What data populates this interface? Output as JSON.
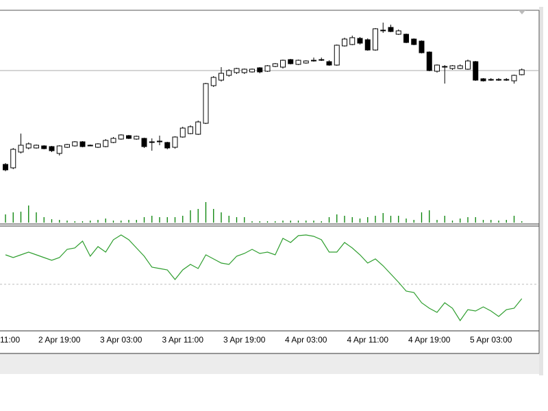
{
  "chart_data": [
    {
      "type": "candlestick",
      "categories": [
        null,
        null,
        null,
        null,
        null,
        null,
        null,
        "2 Apr 19:00",
        null,
        null,
        null,
        null,
        null,
        null,
        null,
        "3 Apr 03:00",
        null,
        null,
        null,
        null,
        null,
        null,
        null,
        "3 Apr 11:00",
        null,
        null,
        null,
        null,
        null,
        null,
        null,
        "3 Apr 19:00",
        null,
        null,
        null,
        null,
        null,
        null,
        null,
        "4 Apr 03:00",
        null,
        null,
        null,
        null,
        null,
        null,
        null,
        "4 Apr 11:00",
        null,
        null,
        null,
        null,
        null,
        null,
        null,
        "4 Apr 19:00",
        null,
        null,
        null,
        null,
        null,
        null,
        null,
        "5 Apr 03:00",
        null,
        null,
        null,
        null
      ],
      "clipped_x_label": "11:00",
      "open": [
        88,
        83,
        106,
        112,
        112,
        115,
        114,
        104,
        113,
        115,
        121,
        116,
        113,
        114,
        120,
        125,
        130,
        125,
        126,
        121,
        122,
        120,
        113,
        128,
        133,
        132,
        148,
        203,
        211,
        218,
        222,
        222,
        223,
        229,
        224,
        231,
        230,
        241,
        234,
        236,
        240,
        241,
        238,
        233,
        261,
        263,
        272,
        270,
        255,
        284,
        288,
        278,
        278,
        271,
        268,
        252,
        224,
        231,
        228,
        228,
        227,
        238,
        213,
        212,
        212,
        212,
        210,
        219
      ],
      "high": [
        90,
        112,
        133,
        120,
        117,
        116,
        115,
        116,
        118,
        122,
        122,
        117,
        119,
        125,
        128,
        132,
        131,
        130,
        127,
        126,
        130,
        121,
        129,
        143,
        145,
        152,
        207,
        217,
        230,
        227,
        229,
        228,
        228,
        230,
        233,
        236,
        241,
        242,
        241,
        240,
        244,
        244,
        240,
        263,
        273,
        276,
        274,
        272,
        287,
        295,
        292,
        285,
        279,
        272,
        269,
        253,
        234,
        233,
        233,
        234,
        241,
        239,
        214,
        214,
        214,
        214,
        219,
        228
      ],
      "low": [
        78,
        81,
        104,
        110,
        111,
        110,
        106,
        101,
        112,
        114,
        113,
        115,
        112,
        113,
        119,
        124,
        125,
        124,
        112,
        108,
        116,
        110,
        111,
        127,
        132,
        131,
        147,
        201,
        209,
        216,
        220,
        220,
        222,
        221,
        223,
        230,
        228,
        234,
        233,
        235,
        238,
        239,
        232,
        232,
        260,
        262,
        263,
        254,
        254,
        280,
        281,
        277,
        265,
        262,
        250,
        224,
        222,
        206,
        226,
        227,
        226,
        210,
        209,
        210,
        210,
        210,
        206,
        218
      ],
      "close": [
        80,
        110,
        116,
        118,
        116,
        111,
        108,
        115,
        117,
        121,
        114,
        116,
        118,
        123,
        126,
        131,
        126,
        129,
        114,
        121,
        122,
        112,
        128,
        141,
        143,
        150,
        206,
        215,
        221,
        225,
        228,
        227,
        227,
        223,
        232,
        235,
        240,
        235,
        240,
        239,
        240,
        241,
        233,
        262,
        271,
        273,
        265,
        255,
        286,
        284,
        282,
        283,
        266,
        263,
        251,
        225,
        233,
        231,
        232,
        232,
        239,
        211,
        210,
        212,
        212,
        212,
        218,
        226
      ],
      "volume": [
        12,
        15,
        16,
        25,
        15,
        8,
        5,
        4,
        3,
        2,
        2,
        3,
        4,
        6,
        3,
        3,
        4,
        4,
        8,
        10,
        8,
        8,
        8,
        10,
        18,
        20,
        30,
        20,
        15,
        10,
        8,
        8,
        2,
        2,
        2,
        2,
        3,
        3,
        3,
        3,
        3,
        2,
        8,
        12,
        10,
        8,
        6,
        8,
        10,
        14,
        10,
        10,
        6,
        4,
        15,
        18,
        4,
        10,
        3,
        6,
        8,
        8,
        4,
        4,
        3,
        4,
        10,
        2
      ],
      "ylim": [
        0,
        313
      ],
      "volume_ylim": [
        0,
        313
      ],
      "hline": 225,
      "up_color": "#ffffff",
      "down_color": "#000000",
      "volume_color": "#008000"
    },
    {
      "type": "line",
      "values": [
        110,
        106,
        110,
        114,
        110,
        106,
        102,
        106,
        118,
        120,
        130,
        108,
        122,
        114,
        132,
        139,
        132,
        120,
        108,
        92,
        90,
        88,
        74,
        88,
        96,
        90,
        110,
        104,
        98,
        96,
        108,
        112,
        118,
        112,
        114,
        110,
        134,
        128,
        138,
        139,
        137,
        132,
        114,
        114,
        128,
        120,
        110,
        98,
        104,
        94,
        82,
        70,
        57,
        55,
        40,
        32,
        26,
        40,
        32,
        14,
        30,
        28,
        34,
        28,
        20,
        30,
        32,
        46
      ],
      "color": "#2e9e2e",
      "ylim": [
        0,
        150
      ],
      "level": 67
    }
  ]
}
